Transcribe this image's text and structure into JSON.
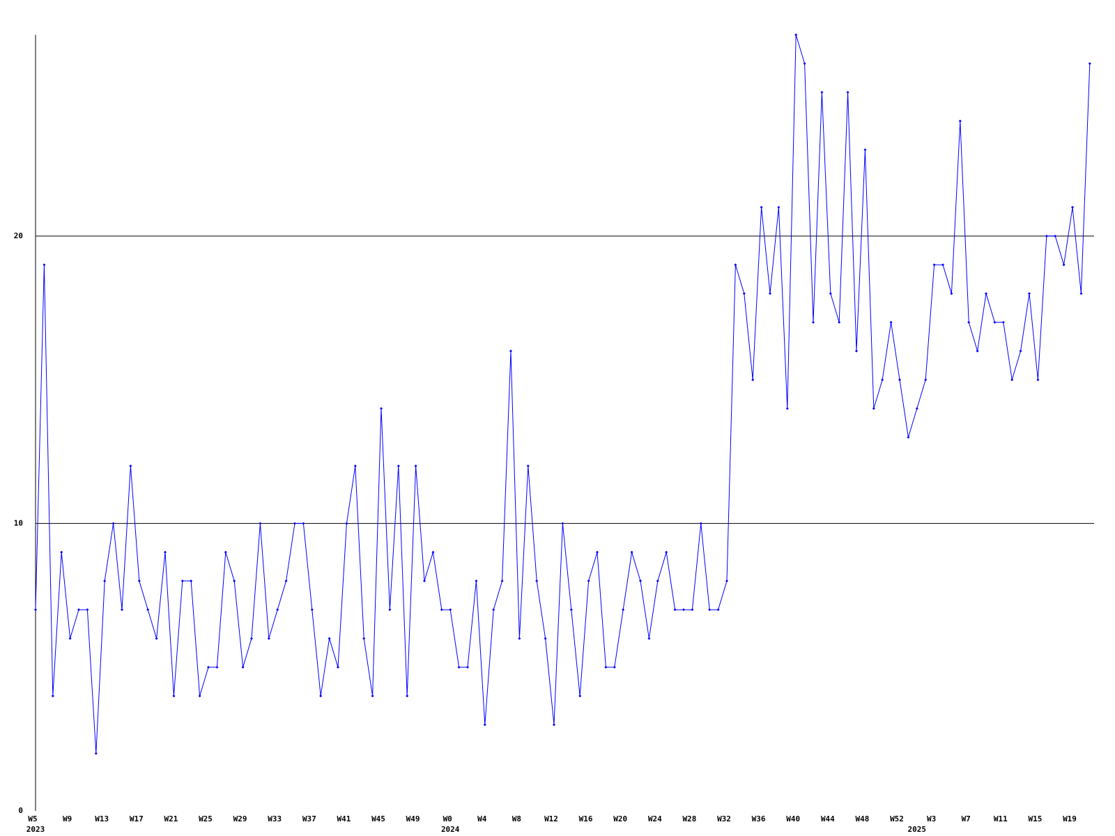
{
  "chart_data": {
    "type": "line",
    "categories": [
      "W5",
      null,
      null,
      null,
      "W9",
      null,
      null,
      null,
      "W13",
      null,
      null,
      null,
      "W17",
      null,
      null,
      null,
      "W21",
      null,
      null,
      null,
      "W25",
      null,
      null,
      null,
      "W29",
      null,
      null,
      null,
      "W33",
      null,
      null,
      null,
      "W37",
      null,
      null,
      null,
      "W41",
      null,
      null,
      null,
      "W45",
      null,
      null,
      null,
      "W49",
      null,
      null,
      null,
      "W0",
      null,
      null,
      null,
      "W4",
      null,
      null,
      null,
      "W8",
      null,
      null,
      null,
      "W12",
      null,
      null,
      null,
      "W16",
      null,
      null,
      null,
      "W20",
      null,
      null,
      null,
      "W24",
      null,
      null,
      null,
      "W28",
      null,
      null,
      null,
      "W32",
      null,
      null,
      null,
      "W36",
      null,
      null,
      null,
      "W40",
      null,
      null,
      null,
      "W44",
      null,
      null,
      null,
      "W48",
      null,
      null,
      null,
      "W52",
      null,
      null,
      null,
      "W3",
      null,
      null,
      null,
      "W7",
      null,
      null,
      null,
      "W11",
      null,
      null,
      null,
      "W15",
      null,
      null,
      null,
      "W19",
      null,
      null
    ],
    "years": [
      {
        "category": 0,
        "label": "2023"
      },
      {
        "category": 48,
        "label": "2024"
      },
      {
        "category": 102,
        "label": "2025"
      }
    ],
    "series": [
      {
        "color": "#0000ff",
        "values": [
          7,
          19,
          4,
          9,
          6,
          7,
          7,
          2,
          8,
          10,
          7,
          12,
          8,
          7,
          6,
          9,
          4,
          8,
          8,
          4,
          5,
          5,
          9,
          8,
          5,
          6,
          10,
          6,
          7,
          8,
          10,
          10,
          7,
          4,
          6,
          5,
          10,
          12,
          6,
          4,
          14,
          7,
          12,
          4,
          12,
          8,
          9,
          7,
          7,
          5,
          5,
          8,
          3,
          7,
          8,
          16,
          6,
          12,
          8,
          6,
          3,
          10,
          7,
          4,
          8,
          9,
          5,
          5,
          7,
          9,
          8,
          6,
          8,
          9,
          7,
          7,
          7,
          10,
          7,
          7,
          8,
          19,
          18,
          15,
          21,
          18,
          21,
          14,
          27,
          26,
          17,
          25,
          18,
          17,
          25,
          16,
          23,
          14,
          15,
          17,
          15,
          13,
          14,
          15,
          19,
          19,
          18,
          24,
          17,
          16,
          18,
          17,
          17,
          15,
          16,
          18,
          15,
          20,
          20,
          19,
          21,
          18,
          26
        ]
      }
    ],
    "ylim": [
      0,
      27
    ],
    "yticks": [
      0,
      10,
      20
    ],
    "grid": true
  }
}
